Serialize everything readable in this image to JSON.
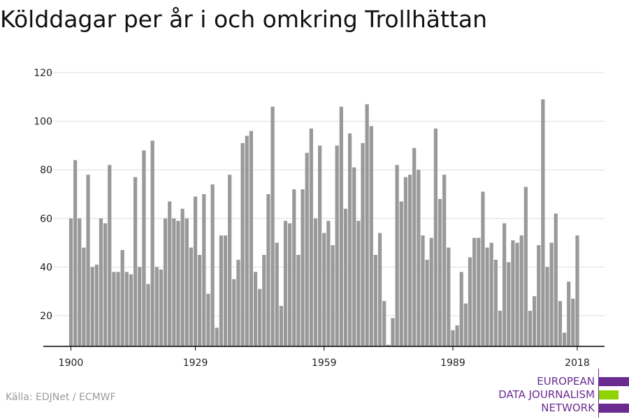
{
  "title": "Kölddagar per år i och omkring Trollhättan",
  "source": "Källa: EDJNet / ECMWF",
  "logo": {
    "lines": [
      "EUROPEAN",
      "DATA JOURNALISM",
      "NETWORK"
    ],
    "colors": {
      "purple": "#6a2c91",
      "green": "#8fd400"
    }
  },
  "colors": {
    "bar": "#999999",
    "grid": "#dddddd",
    "axis": "#000000"
  },
  "chart_data": {
    "type": "bar",
    "title": "Kölddagar per år i och omkring Trollhättan",
    "xlabel": "",
    "ylabel": "",
    "x_start": 1900,
    "x_end": 2018,
    "x_ticks": [
      1900,
      1929,
      1959,
      1989,
      2018
    ],
    "y_ticks": [
      20,
      40,
      60,
      80,
      100,
      120
    ],
    "ylim": [
      7,
      120
    ],
    "grid": true,
    "values": [
      60,
      84,
      60,
      48,
      78,
      40,
      41,
      60,
      58,
      82,
      38,
      38,
      47,
      38,
      37,
      77,
      40,
      88,
      33,
      92,
      40,
      39,
      60,
      67,
      60,
      59,
      64,
      60,
      48,
      69,
      45,
      70,
      29,
      74,
      15,
      53,
      53,
      78,
      35,
      43,
      91,
      94,
      96,
      38,
      31,
      45,
      70,
      106,
      50,
      24,
      59,
      58,
      72,
      45,
      72,
      87,
      97,
      60,
      90,
      54,
      59,
      49,
      90,
      106,
      64,
      95,
      81,
      59,
      91,
      107,
      98,
      45,
      54,
      26,
      8,
      19,
      82,
      67,
      77,
      78,
      89,
      80,
      53,
      43,
      52,
      97,
      68,
      78,
      48,
      14,
      16,
      38,
      25,
      44,
      52,
      52,
      71,
      48,
      50,
      43,
      22,
      58,
      42,
      51,
      50,
      53,
      73,
      22,
      28,
      49,
      109,
      40,
      50,
      62,
      26,
      13,
      34,
      27,
      53
    ]
  }
}
